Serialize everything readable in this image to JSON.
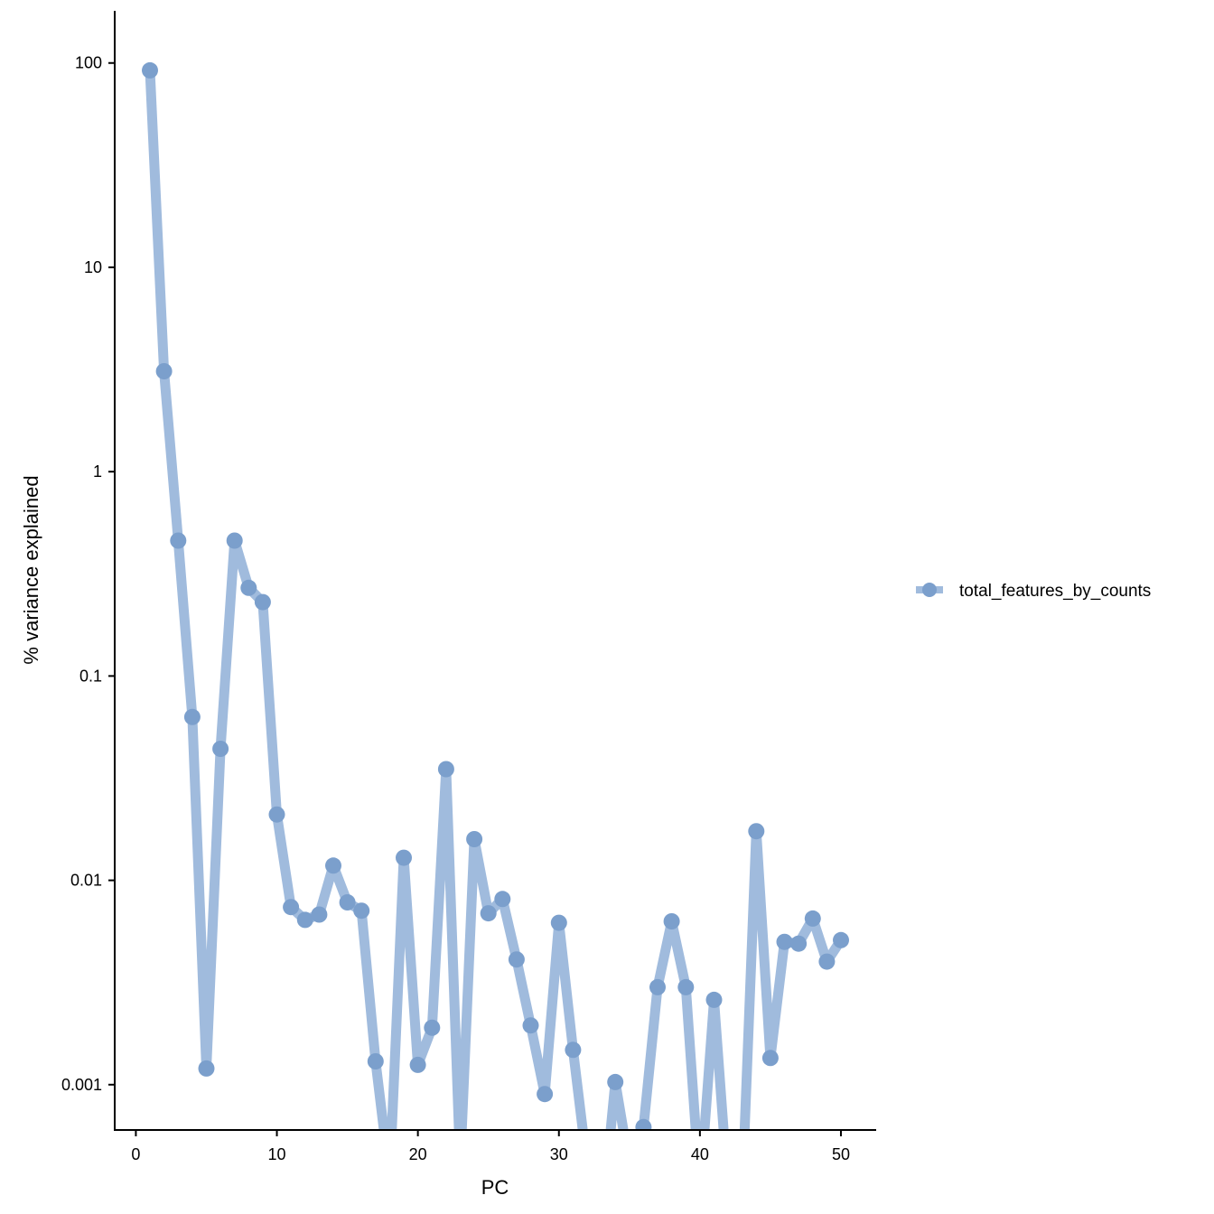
{
  "chart_data": {
    "type": "line",
    "xlabel": "PC",
    "ylabel": "% variance explained",
    "x_scale": "linear",
    "y_scale": "log",
    "xlim": [
      -1.5,
      52.5
    ],
    "ylim": [
      0.0006,
      180
    ],
    "x_ticks": [
      0,
      10,
      20,
      30,
      40,
      50
    ],
    "x_tick_labels": [
      "0",
      "10",
      "20",
      "30",
      "40",
      "50"
    ],
    "y_ticks": [
      0.001,
      0.01,
      0.1,
      1,
      10,
      100
    ],
    "y_tick_labels": [
      "0.001",
      "0.01",
      "0.1",
      "1",
      "10",
      "100"
    ],
    "grid": false,
    "legend_position": "right",
    "series": [
      {
        "name": "total_features_by_counts",
        "color": "#7b9fcc",
        "line_color": "#a0bbdd",
        "x": [
          1,
          2,
          3,
          4,
          5,
          6,
          7,
          8,
          9,
          10,
          11,
          12,
          13,
          14,
          15,
          16,
          17,
          18,
          19,
          20,
          21,
          22,
          23,
          24,
          25,
          26,
          27,
          28,
          29,
          30,
          31,
          32,
          33,
          34,
          35,
          36,
          37,
          38,
          39,
          40,
          41,
          42,
          43,
          44,
          45,
          46,
          47,
          48,
          49,
          50
        ],
        "values": [
          92,
          3.1,
          0.46,
          0.063,
          0.0012,
          0.044,
          0.46,
          0.27,
          0.23,
          0.021,
          0.0074,
          0.0064,
          0.0068,
          0.0118,
          0.0078,
          0.0071,
          0.0013,
          0.00035,
          0.0129,
          0.00125,
          0.0019,
          0.035,
          0.0004,
          0.0159,
          0.0069,
          0.0081,
          0.0041,
          0.00195,
          0.0009,
          0.0062,
          0.00148,
          0.0004,
          0.0002,
          0.00103,
          0.0004,
          0.00062,
          0.003,
          0.0063,
          0.003,
          0.0003,
          0.0026,
          0.0003,
          0.0003,
          0.0174,
          0.00135,
          0.005,
          0.0049,
          0.0065,
          0.004,
          0.0051
        ]
      }
    ]
  }
}
